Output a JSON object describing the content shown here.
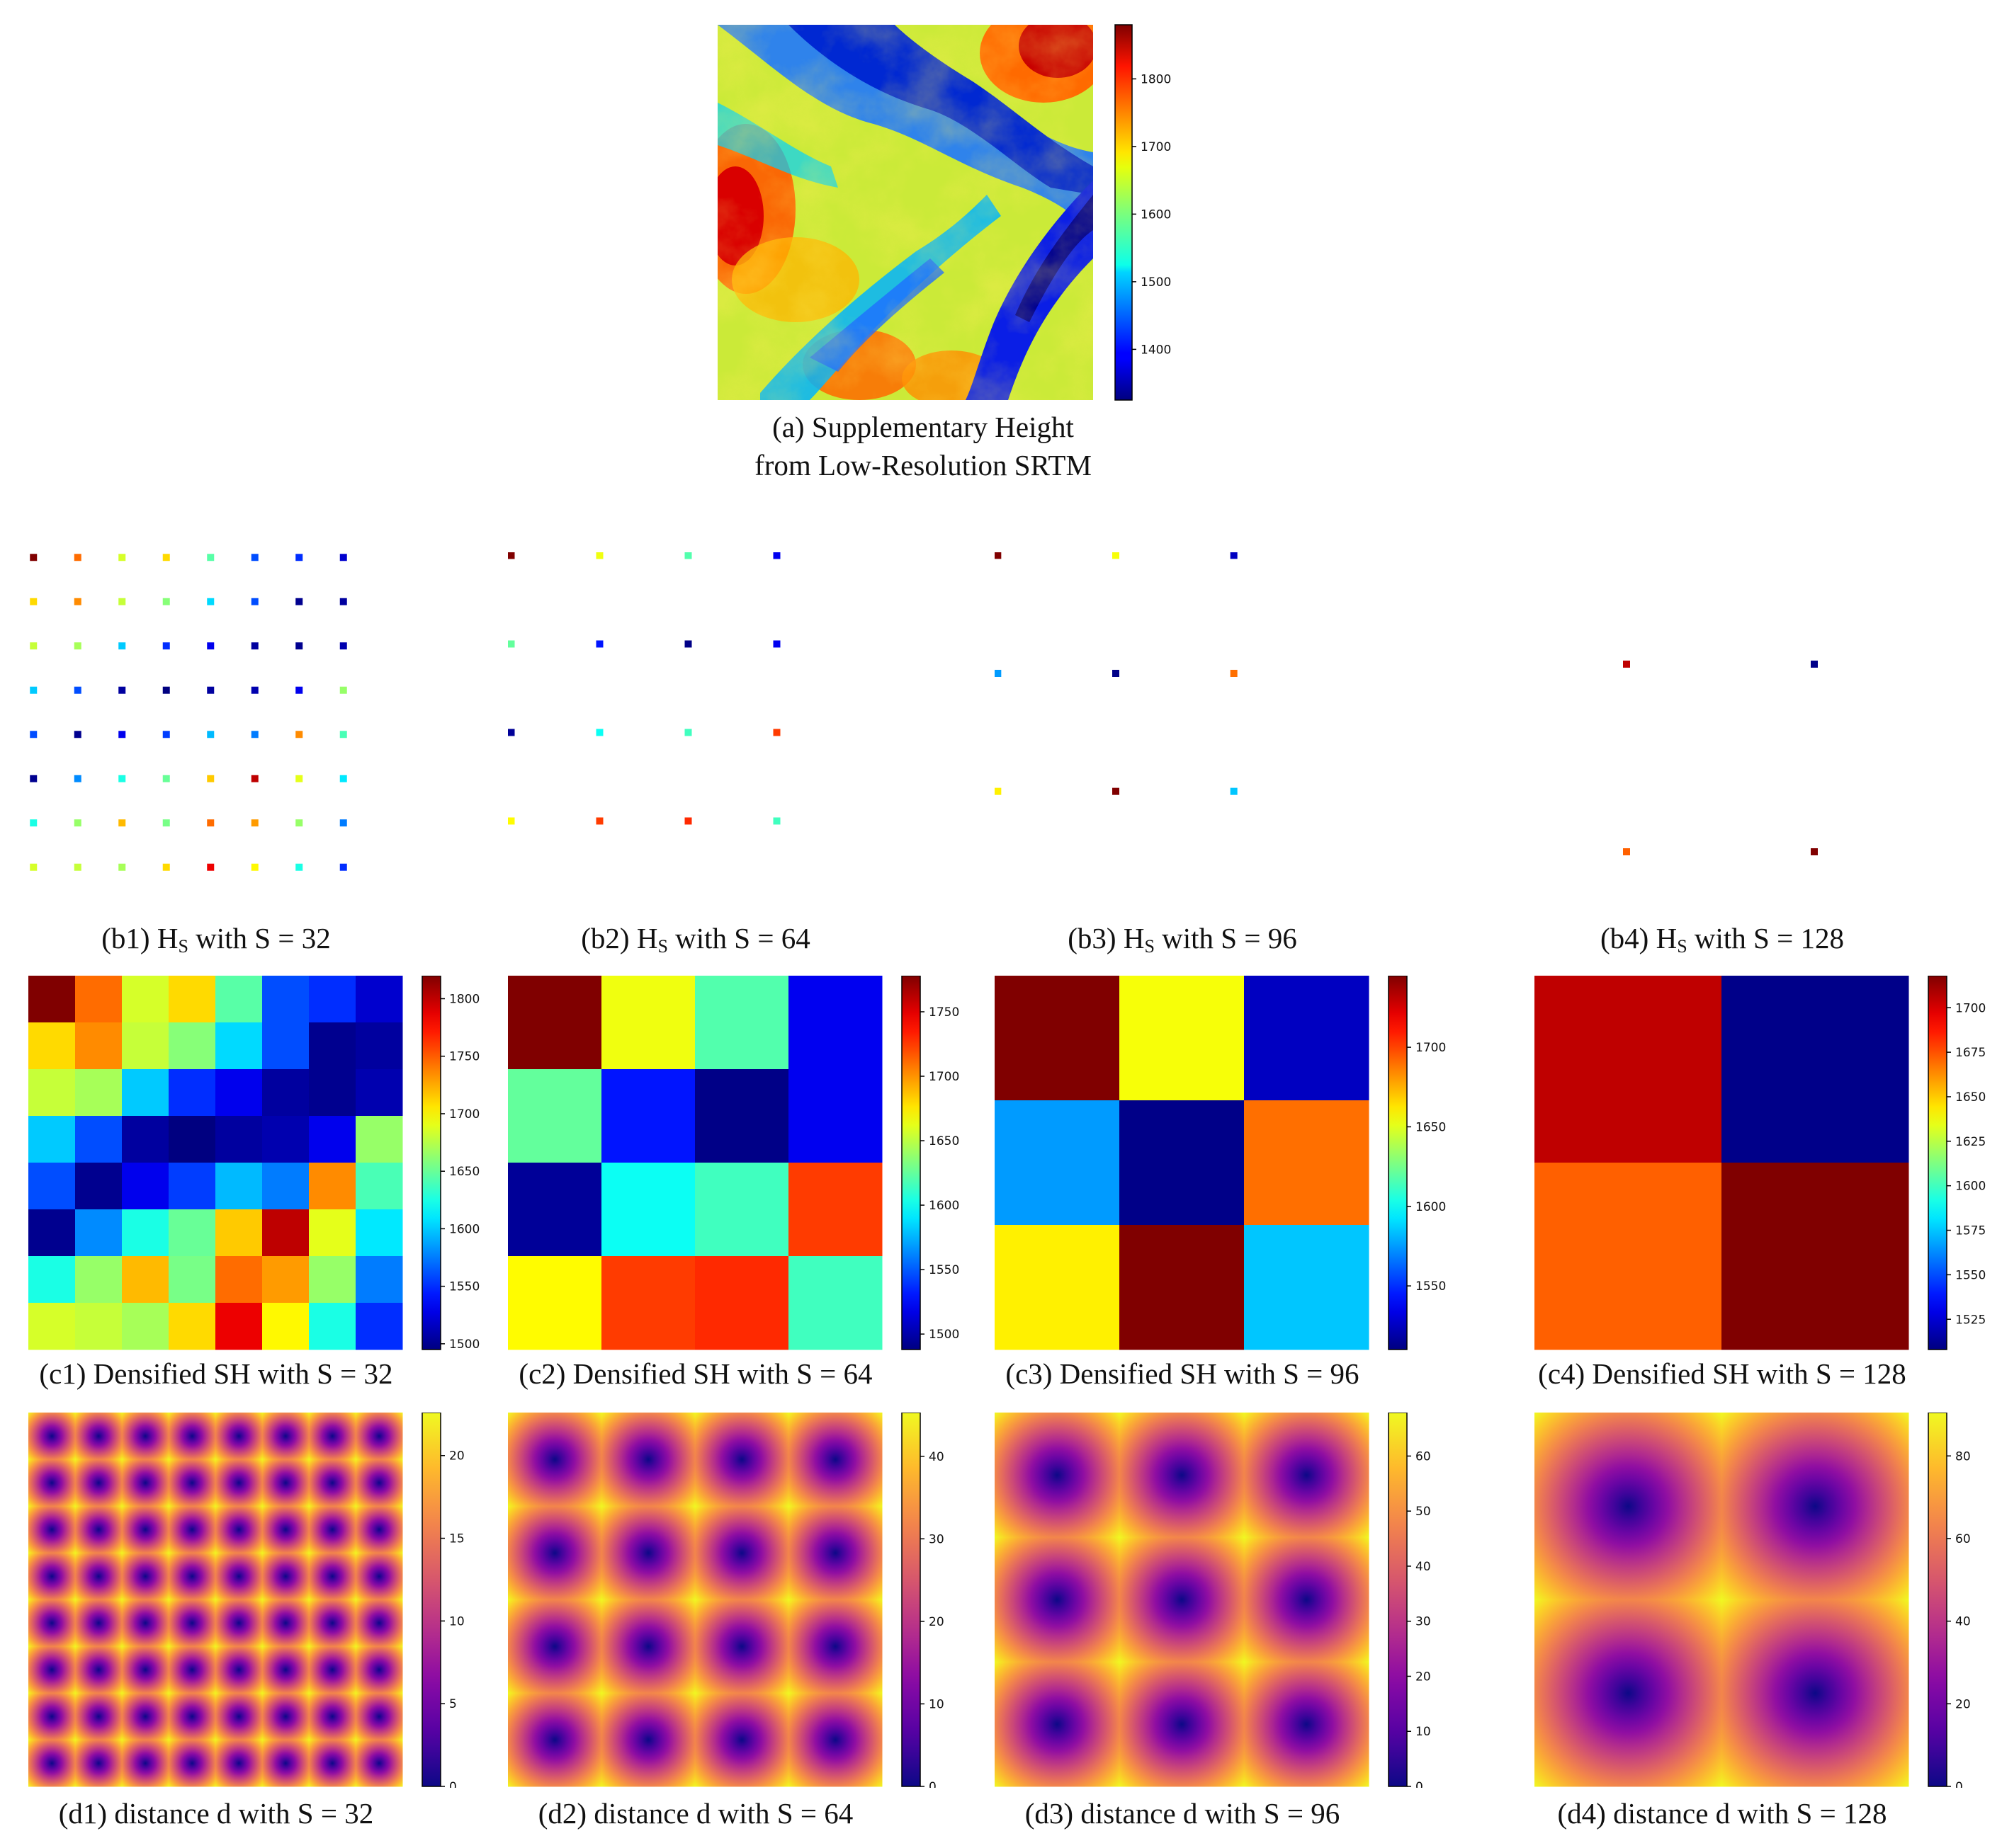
{
  "figure": {
    "panel_a": {
      "caption_line1": "(a) Supplementary Height",
      "caption_line2": "from Low-Resolution SRTM",
      "colorbar_ticks": [
        "1800",
        "1700",
        "1600",
        "1500",
        "1400"
      ],
      "colorbar_range": [
        1325,
        1880
      ],
      "colormap": "jet"
    },
    "row_b": [
      {
        "caption_pre": "(b1) H",
        "caption_sub": "S",
        "caption_post": " with S = 32",
        "grid": 8
      },
      {
        "caption_pre": "(b2) H",
        "caption_sub": "S",
        "caption_post": " with S = 64",
        "grid": 4
      },
      {
        "caption_pre": "(b3) H",
        "caption_sub": "S",
        "caption_post": " with S = 96",
        "grid": 3
      },
      {
        "caption_pre": "(b4) H",
        "caption_sub": "S",
        "caption_post": " with S = 128",
        "grid": 2
      }
    ],
    "row_c": [
      {
        "caption": "(c1) Densified SH with S = 32",
        "range": [
          1495,
          1820
        ],
        "ticks": [
          "1800",
          "1750",
          "1700",
          "1650",
          "1600",
          "1550",
          "1500"
        ],
        "tick_values": [
          1800,
          1750,
          1700,
          1650,
          1600,
          1550,
          1500
        ],
        "values": [
          [
            1820,
            1745,
            1685,
            1710,
            1645,
            1560,
            1550,
            1520
          ],
          [
            1710,
            1735,
            1680,
            1660,
            1605,
            1560,
            1500,
            1505
          ],
          [
            1680,
            1670,
            1600,
            1550,
            1530,
            1505,
            1500,
            1510
          ],
          [
            1600,
            1560,
            1505,
            1495,
            1505,
            1510,
            1530,
            1665
          ],
          [
            1560,
            1500,
            1530,
            1555,
            1595,
            1575,
            1735,
            1640
          ],
          [
            1500,
            1580,
            1625,
            1650,
            1715,
            1800,
            1690,
            1610
          ],
          [
            1625,
            1665,
            1720,
            1655,
            1745,
            1730,
            1665,
            1575
          ],
          [
            1685,
            1680,
            1670,
            1710,
            1785,
            1700,
            1625,
            1550
          ]
        ]
      },
      {
        "caption": "(c2) Densified SH with S = 64",
        "range": [
          1488,
          1778
        ],
        "ticks": [
          "1750",
          "1700",
          "1650",
          "1600",
          "1550",
          "1500"
        ],
        "tick_values": [
          1750,
          1700,
          1650,
          1600,
          1550,
          1500
        ],
        "values": [
          [
            1778,
            1665,
            1620,
            1520
          ],
          [
            1625,
            1530,
            1490,
            1520
          ],
          [
            1495,
            1600,
            1615,
            1725
          ],
          [
            1670,
            1725,
            1730,
            1615
          ]
        ]
      },
      {
        "caption": "(c3) Densified SH with S = 96",
        "range": [
          1510,
          1745
        ],
        "ticks": [
          "1700",
          "1650",
          "1600",
          "1550"
        ],
        "tick_values": [
          1700,
          1650,
          1600,
          1550
        ],
        "values": [
          [
            1745,
            1655,
            1525
          ],
          [
            1575,
            1512,
            1690
          ],
          [
            1660,
            1745,
            1585
          ]
        ]
      },
      {
        "caption": "(c4) Densified SH with S = 128",
        "range": [
          1508,
          1718
        ],
        "ticks": [
          "1700",
          "1675",
          "1650",
          "1625",
          "1600",
          "1575",
          "1550",
          "1525"
        ],
        "tick_values": [
          1700,
          1675,
          1650,
          1625,
          1600,
          1575,
          1550,
          1525
        ],
        "values": [
          [
            1705,
            1510
          ],
          [
            1672,
            1718
          ]
        ]
      }
    ],
    "row_d": [
      {
        "caption": "(d1) distance d with S = 32",
        "max": 22.6,
        "ticks": [
          "20",
          "15",
          "10",
          "5",
          "0"
        ],
        "tick_values": [
          20,
          15,
          10,
          5,
          0
        ],
        "grid": 8
      },
      {
        "caption": "(d2) distance d with S = 64",
        "max": 45.3,
        "ticks": [
          "40",
          "30",
          "20",
          "10",
          "0"
        ],
        "tick_values": [
          40,
          30,
          20,
          10,
          0
        ],
        "grid": 4
      },
      {
        "caption": "(d3) distance d with S = 96",
        "max": 67.9,
        "ticks": [
          "60",
          "50",
          "40",
          "30",
          "20",
          "10",
          "0"
        ],
        "tick_values": [
          60,
          50,
          40,
          30,
          20,
          10,
          0
        ],
        "grid": 3
      },
      {
        "caption": "(d4) distance d with S = 128",
        "max": 90.5,
        "ticks": [
          "80",
          "60",
          "40",
          "20",
          "0"
        ],
        "tick_values": [
          80,
          60,
          40,
          20,
          0
        ],
        "grid": 2
      }
    ],
    "colors": {
      "jet_low": "#00007f",
      "jet_high": "#7f0000",
      "plasma_low": "#0d0887",
      "plasma_high": "#f0f921"
    }
  }
}
